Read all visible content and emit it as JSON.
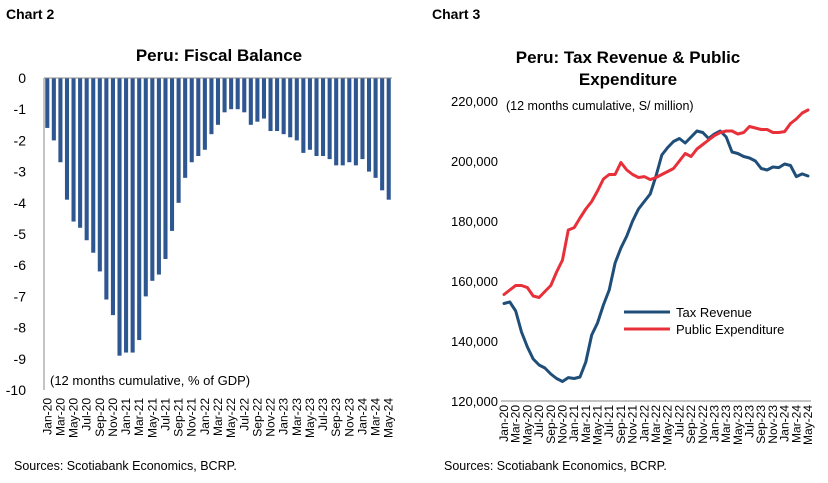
{
  "charts": [
    {
      "label": "Chart 2",
      "source": "Sources: Scotiabank Economics, BCRP."
    },
    {
      "label": "Chart 3",
      "source": "Sources: Scotiabank Economics, BCRP."
    }
  ],
  "chart_data": [
    {
      "type": "bar",
      "title": "Peru: Fiscal Balance",
      "annotation": "(12 months cumulative, % of GDP)",
      "ylim": [
        -10,
        0
      ],
      "yticks": [
        0,
        -1,
        -2,
        -3,
        -4,
        -5,
        -6,
        -7,
        -8,
        -9,
        -10
      ],
      "tick_labels": [
        "Jan-20",
        "Mar-20",
        "May-20",
        "Jul-20",
        "Sep-20",
        "Nov-20",
        "Jan-21",
        "Mar-21",
        "May-21",
        "Jul-21",
        "Sep-21",
        "Nov-21",
        "Jan-22",
        "Mar-22",
        "May-22",
        "Jul-22",
        "Sep-22",
        "Nov-22",
        "Jan-23",
        "Mar-23",
        "May-23",
        "Jul-23",
        "Sep-23",
        "Nov-23",
        "Jan-24",
        "Mar-24",
        "May-24"
      ],
      "values": [
        -1.6,
        -2.0,
        -2.7,
        -3.9,
        -4.6,
        -4.8,
        -5.2,
        -5.6,
        -6.2,
        -7.1,
        -7.6,
        -8.9,
        -8.8,
        -8.8,
        -8.4,
        -7.0,
        -6.5,
        -6.3,
        -5.8,
        -4.9,
        -4.0,
        -3.2,
        -2.7,
        -2.5,
        -2.3,
        -1.8,
        -1.5,
        -1.1,
        -1.0,
        -1.0,
        -1.1,
        -1.5,
        -1.4,
        -1.3,
        -1.7,
        -1.7,
        -1.8,
        -1.9,
        -2.0,
        -2.4,
        -2.3,
        -2.5,
        -2.5,
        -2.6,
        -2.8,
        -2.8,
        -2.7,
        -2.8,
        -2.6,
        -3.0,
        -3.2,
        -3.6,
        -3.9
      ]
    },
    {
      "type": "line",
      "title": "Peru: Tax Revenue & Public Expenditure",
      "title_lines": [
        "Peru: Tax Revenue & Public",
        "Expenditure"
      ],
      "annotation": "(12 months cumulative, S/ million)",
      "ylim": [
        120000,
        220000
      ],
      "yticks": [
        120000,
        140000,
        160000,
        180000,
        200000,
        220000
      ],
      "ytick_labels": [
        "120,000",
        "140,000",
        "160,000",
        "180,000",
        "200,000",
        "220,000"
      ],
      "tick_labels": [
        "Jan-20",
        "Mar-20",
        "May-20",
        "Jul-20",
        "Sep-20",
        "Nov-20",
        "Jan-21",
        "Mar-21",
        "May-21",
        "Jul-21",
        "Sep-21",
        "Nov-21",
        "Jan-22",
        "Mar-22",
        "May-22",
        "Jul-22",
        "Sep-22",
        "Nov-22",
        "Jan-23",
        "Mar-23",
        "May-23",
        "Jul-23",
        "Sep-23",
        "Nov-23",
        "Jan-24",
        "Mar-24",
        "May-24"
      ],
      "legend_position": "center-right",
      "series": [
        {
          "name": "Tax Revenue",
          "color": "#1f4e79",
          "values": [
            152500,
            153000,
            150000,
            143000,
            138000,
            134000,
            132000,
            131000,
            129000,
            127500,
            126500,
            127800,
            127500,
            128000,
            133000,
            142000,
            146000,
            152000,
            157000,
            166000,
            171000,
            175000,
            180000,
            184000,
            186500,
            189000,
            195000,
            202000,
            204500,
            206500,
            207500,
            206000,
            208000,
            210000,
            209500,
            207500,
            209000,
            210000,
            208000,
            203000,
            202500,
            201500,
            201000,
            200000,
            197500,
            197000,
            198000,
            197800,
            199000,
            198500,
            194800,
            195700,
            195000
          ]
        },
        {
          "name": "Public Expenditure",
          "color": "#e8303a",
          "values": [
            155500,
            157000,
            158500,
            158500,
            157800,
            155000,
            154500,
            156500,
            158500,
            163000,
            167000,
            177000,
            177800,
            181000,
            184000,
            186500,
            190000,
            194000,
            195500,
            195500,
            199500,
            197000,
            195500,
            194500,
            194800,
            193800,
            194500,
            195500,
            196500,
            197500,
            200000,
            202500,
            201500,
            204000,
            205500,
            207000,
            208500,
            209500,
            210000,
            210000,
            209000,
            209500,
            211500,
            211000,
            210500,
            210500,
            209500,
            209500,
            209800,
            212500,
            214000,
            216000,
            217000
          ]
        }
      ]
    }
  ]
}
